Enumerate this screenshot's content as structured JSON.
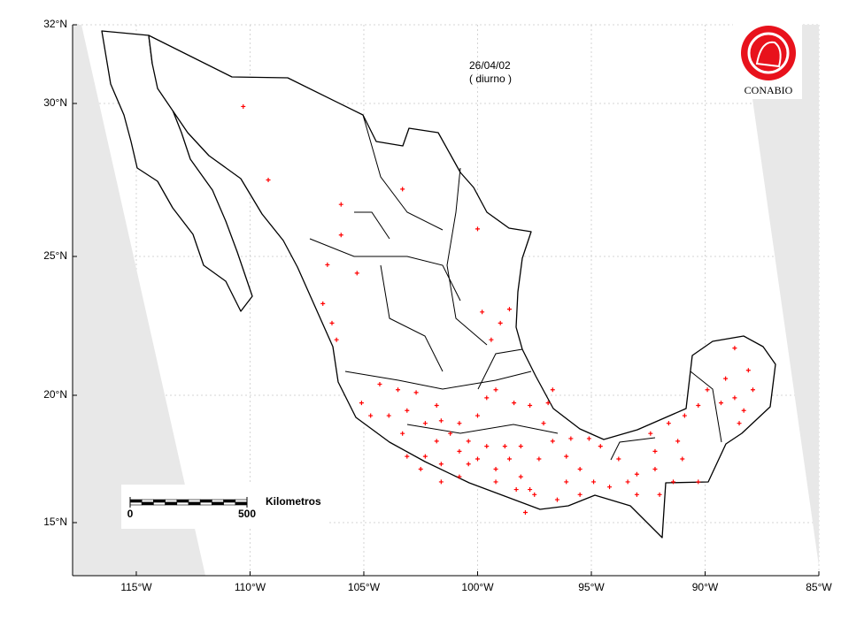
{
  "chart_data": {
    "type": "scatter",
    "annotations": [
      "26/04/02",
      "( diurno )"
    ],
    "logo_text": "CONABIO",
    "scale_bar": {
      "ticks": [
        0,
        500
      ],
      "unit": "Kilometros"
    },
    "color": "#ff0000",
    "grid": true,
    "xlim": [
      -117.8,
      -85
    ],
    "ylim": [
      13.2,
      32
    ],
    "xticks": [
      {
        "value": -115,
        "label": "115°W"
      },
      {
        "value": -110,
        "label": "110°W"
      },
      {
        "value": -105,
        "label": "105°W"
      },
      {
        "value": -100,
        "label": "100°W"
      },
      {
        "value": -95,
        "label": "95°W"
      },
      {
        "value": -90,
        "label": "90°W"
      },
      {
        "value": -85,
        "label": "85°W"
      }
    ],
    "yticks": [
      {
        "value": 15,
        "label": "15°N"
      },
      {
        "value": 20,
        "label": "20°N"
      },
      {
        "value": 25,
        "label": "25°N"
      },
      {
        "value": 30,
        "label": "30°N"
      },
      {
        "value": 32,
        "label": "32°N"
      }
    ],
    "x": [
      -110.3,
      -109.2,
      -106.0,
      -106.0,
      -103.3,
      -106.6,
      -105.3,
      -106.8,
      -106.4,
      -106.2,
      -100.0,
      -99.8,
      -98.6,
      -99.0,
      -99.4,
      -104.3,
      -103.5,
      -102.7,
      -105.1,
      -104.7,
      -103.9,
      -103.1,
      -103.3,
      -102.3,
      -101.6,
      -101.8,
      -101.2,
      -100.8,
      -100.4,
      -100.0,
      -99.6,
      -99.2,
      -98.6,
      -98.1,
      -97.7,
      -97.3,
      -97.1,
      -96.7,
      -96.1,
      -95.5,
      -95.1,
      -94.6,
      -93.8,
      -93.0,
      -92.2,
      -91.4,
      -93.0,
      -94.2,
      -95.5,
      -96.5,
      -97.5,
      -98.3,
      -99.2,
      -100.8,
      -101.6,
      -102.3,
      -92.4,
      -91.6,
      -90.9,
      -90.3,
      -90.3,
      -91.0,
      -89.9,
      -89.1,
      -88.7,
      -88.3,
      -88.1,
      -87.9,
      -88.7,
      -88.5,
      -89.3,
      -99.6,
      -99.2,
      -98.4,
      -97.7,
      -96.9,
      -100.0,
      -100.8,
      -101.6,
      -96.1,
      -94.9,
      -93.4,
      -92.0,
      -91.2,
      -96.7,
      -101.8,
      -103.1,
      -102.5,
      -100.4,
      -98.8,
      -98.1,
      -97.9,
      -95.9,
      -92.2
    ],
    "y": [
      29.9,
      27.5,
      26.7,
      25.7,
      27.2,
      24.7,
      24.4,
      23.3,
      22.6,
      22.0,
      25.9,
      23.0,
      23.1,
      22.6,
      22.0,
      20.4,
      20.2,
      20.1,
      19.7,
      19.2,
      19.2,
      19.4,
      18.5,
      18.9,
      19.0,
      18.2,
      18.5,
      17.8,
      18.2,
      17.5,
      18.0,
      17.1,
      17.5,
      16.8,
      16.3,
      17.5,
      18.9,
      18.2,
      17.6,
      17.1,
      18.3,
      18.0,
      17.5,
      16.9,
      17.1,
      16.6,
      16.1,
      16.4,
      16.1,
      15.9,
      16.1,
      16.3,
      16.6,
      16.8,
      17.3,
      17.6,
      18.5,
      18.9,
      19.2,
      19.6,
      16.6,
      17.5,
      20.2,
      20.6,
      19.9,
      19.4,
      20.9,
      20.2,
      21.7,
      18.9,
      19.7,
      19.9,
      20.2,
      19.7,
      19.6,
      19.7,
      19.2,
      18.9,
      16.6,
      16.6,
      16.6,
      16.6,
      16.1,
      18.2,
      20.2,
      19.6,
      17.6,
      17.1,
      17.3,
      18.0,
      18.0,
      15.4,
      18.3,
      17.8
    ]
  }
}
